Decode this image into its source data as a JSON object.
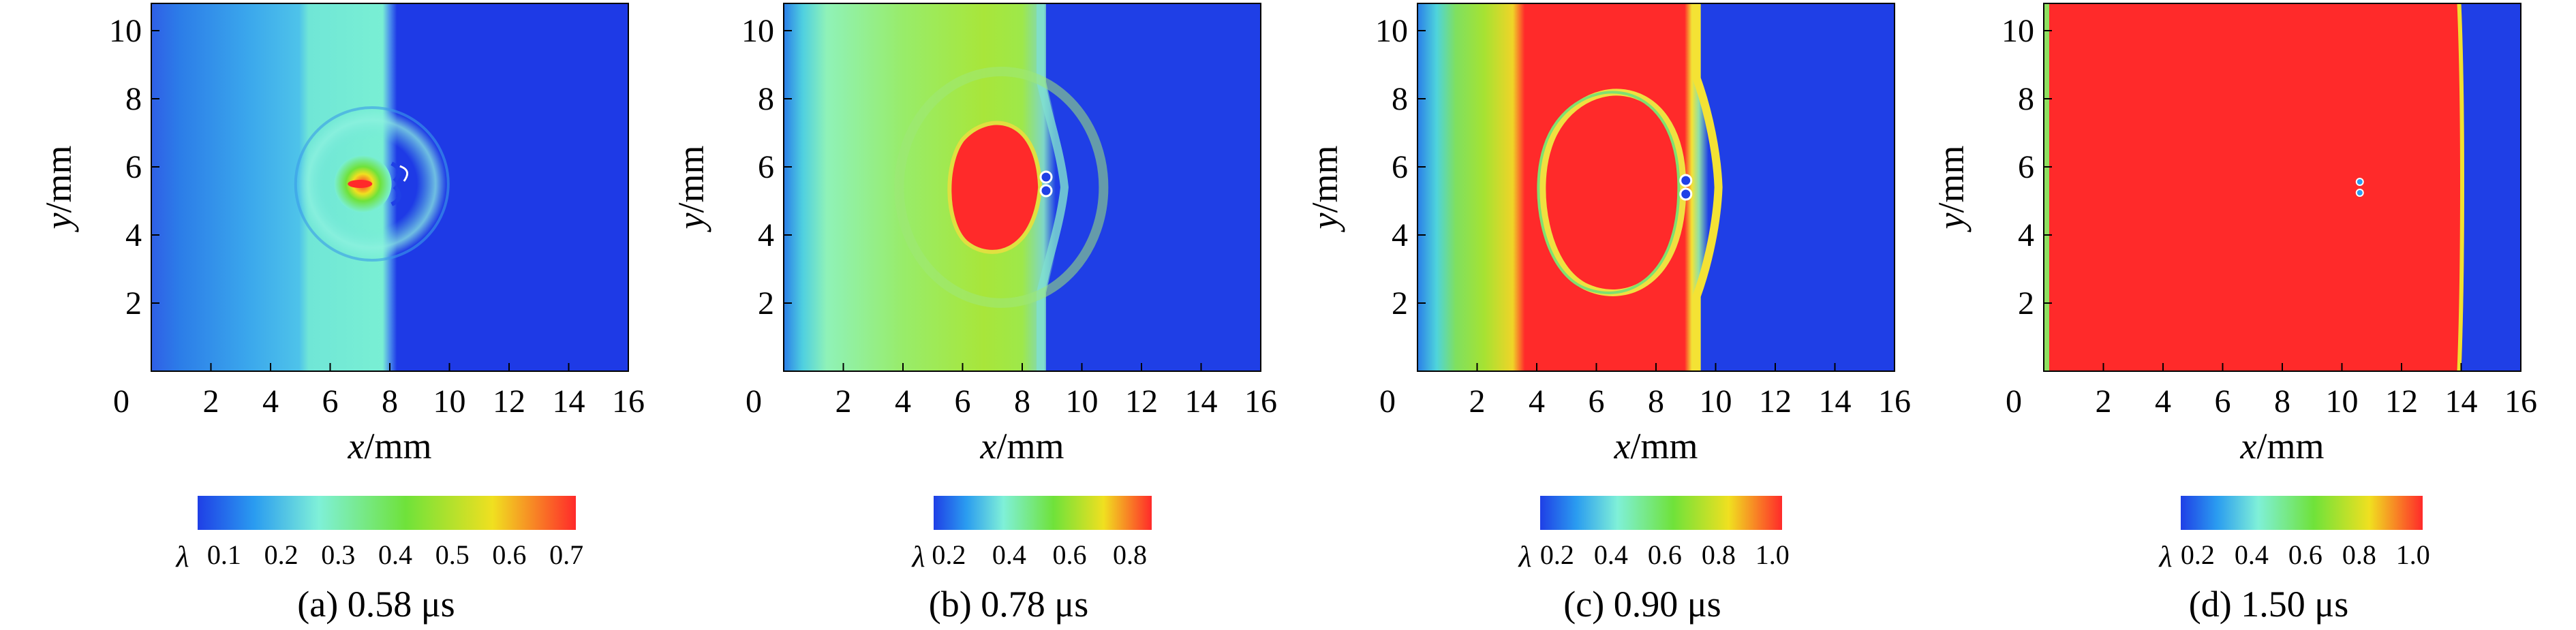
{
  "axis": {
    "xlabel_var": "x",
    "xlabel_unit": "/mm",
    "ylabel_var": "y",
    "ylabel_unit": "/mm",
    "xticks": [
      "0",
      "2",
      "4",
      "6",
      "8",
      "10",
      "12",
      "14",
      "16"
    ],
    "yticks": [
      "2",
      "4",
      "6",
      "8",
      "10"
    ],
    "xlim": [
      0,
      16
    ],
    "ylim": [
      0,
      10.8
    ]
  },
  "colorbar_symbol": "λ",
  "colormap": [
    "#1f3fe6",
    "#2a9cf0",
    "#7ff0d8",
    "#6fe23a",
    "#f0e020",
    "#ff2a2a"
  ],
  "panels": [
    {
      "caption": "(a) 0.58 μs",
      "time_us": 0.58,
      "cbar_ticks": [
        "0.1",
        "0.2",
        "0.3",
        "0.4",
        "0.5",
        "0.6",
        "0.7"
      ],
      "field": {
        "type": "contour",
        "variable": "λ",
        "shock_front_x_mm": 7.8,
        "vapor_bubble_center_mm": [
          8.2,
          5.5
        ],
        "mesh_region_center_mm": [
          7.0,
          5.5
        ]
      }
    },
    {
      "caption": "(b) 0.78 μs",
      "time_us": 0.78,
      "cbar_ticks": [
        "0.2",
        "0.4",
        "0.6",
        "0.8"
      ],
      "field": {
        "type": "contour",
        "variable": "λ",
        "shock_front_x_mm": 8.8,
        "vapor_bubble_center_mm": [
          8.8,
          5.5
        ],
        "mesh_region_center_mm": [
          7.2,
          5.3
        ]
      }
    },
    {
      "caption": "(c) 0.90 μs",
      "time_us": 0.9,
      "cbar_ticks": [
        "0.2",
        "0.4",
        "0.6",
        "0.8",
        "1.0"
      ],
      "field": {
        "type": "contour",
        "variable": "λ",
        "shock_front_x_mm": 9.6,
        "vapor_bubble_center_mm": [
          9.0,
          5.4
        ],
        "mesh_region_center_mm": [
          7.2,
          5.4
        ]
      }
    },
    {
      "caption": "(d) 1.50 μs",
      "time_us": 1.5,
      "cbar_ticks": [
        "0.2",
        "0.4",
        "0.6",
        "0.8",
        "1.0"
      ],
      "field": {
        "type": "contour",
        "variable": "λ",
        "shock_front_x_mm": 14.0,
        "vapor_bubble_center_mm": [
          10.6,
          5.4
        ]
      }
    }
  ]
}
